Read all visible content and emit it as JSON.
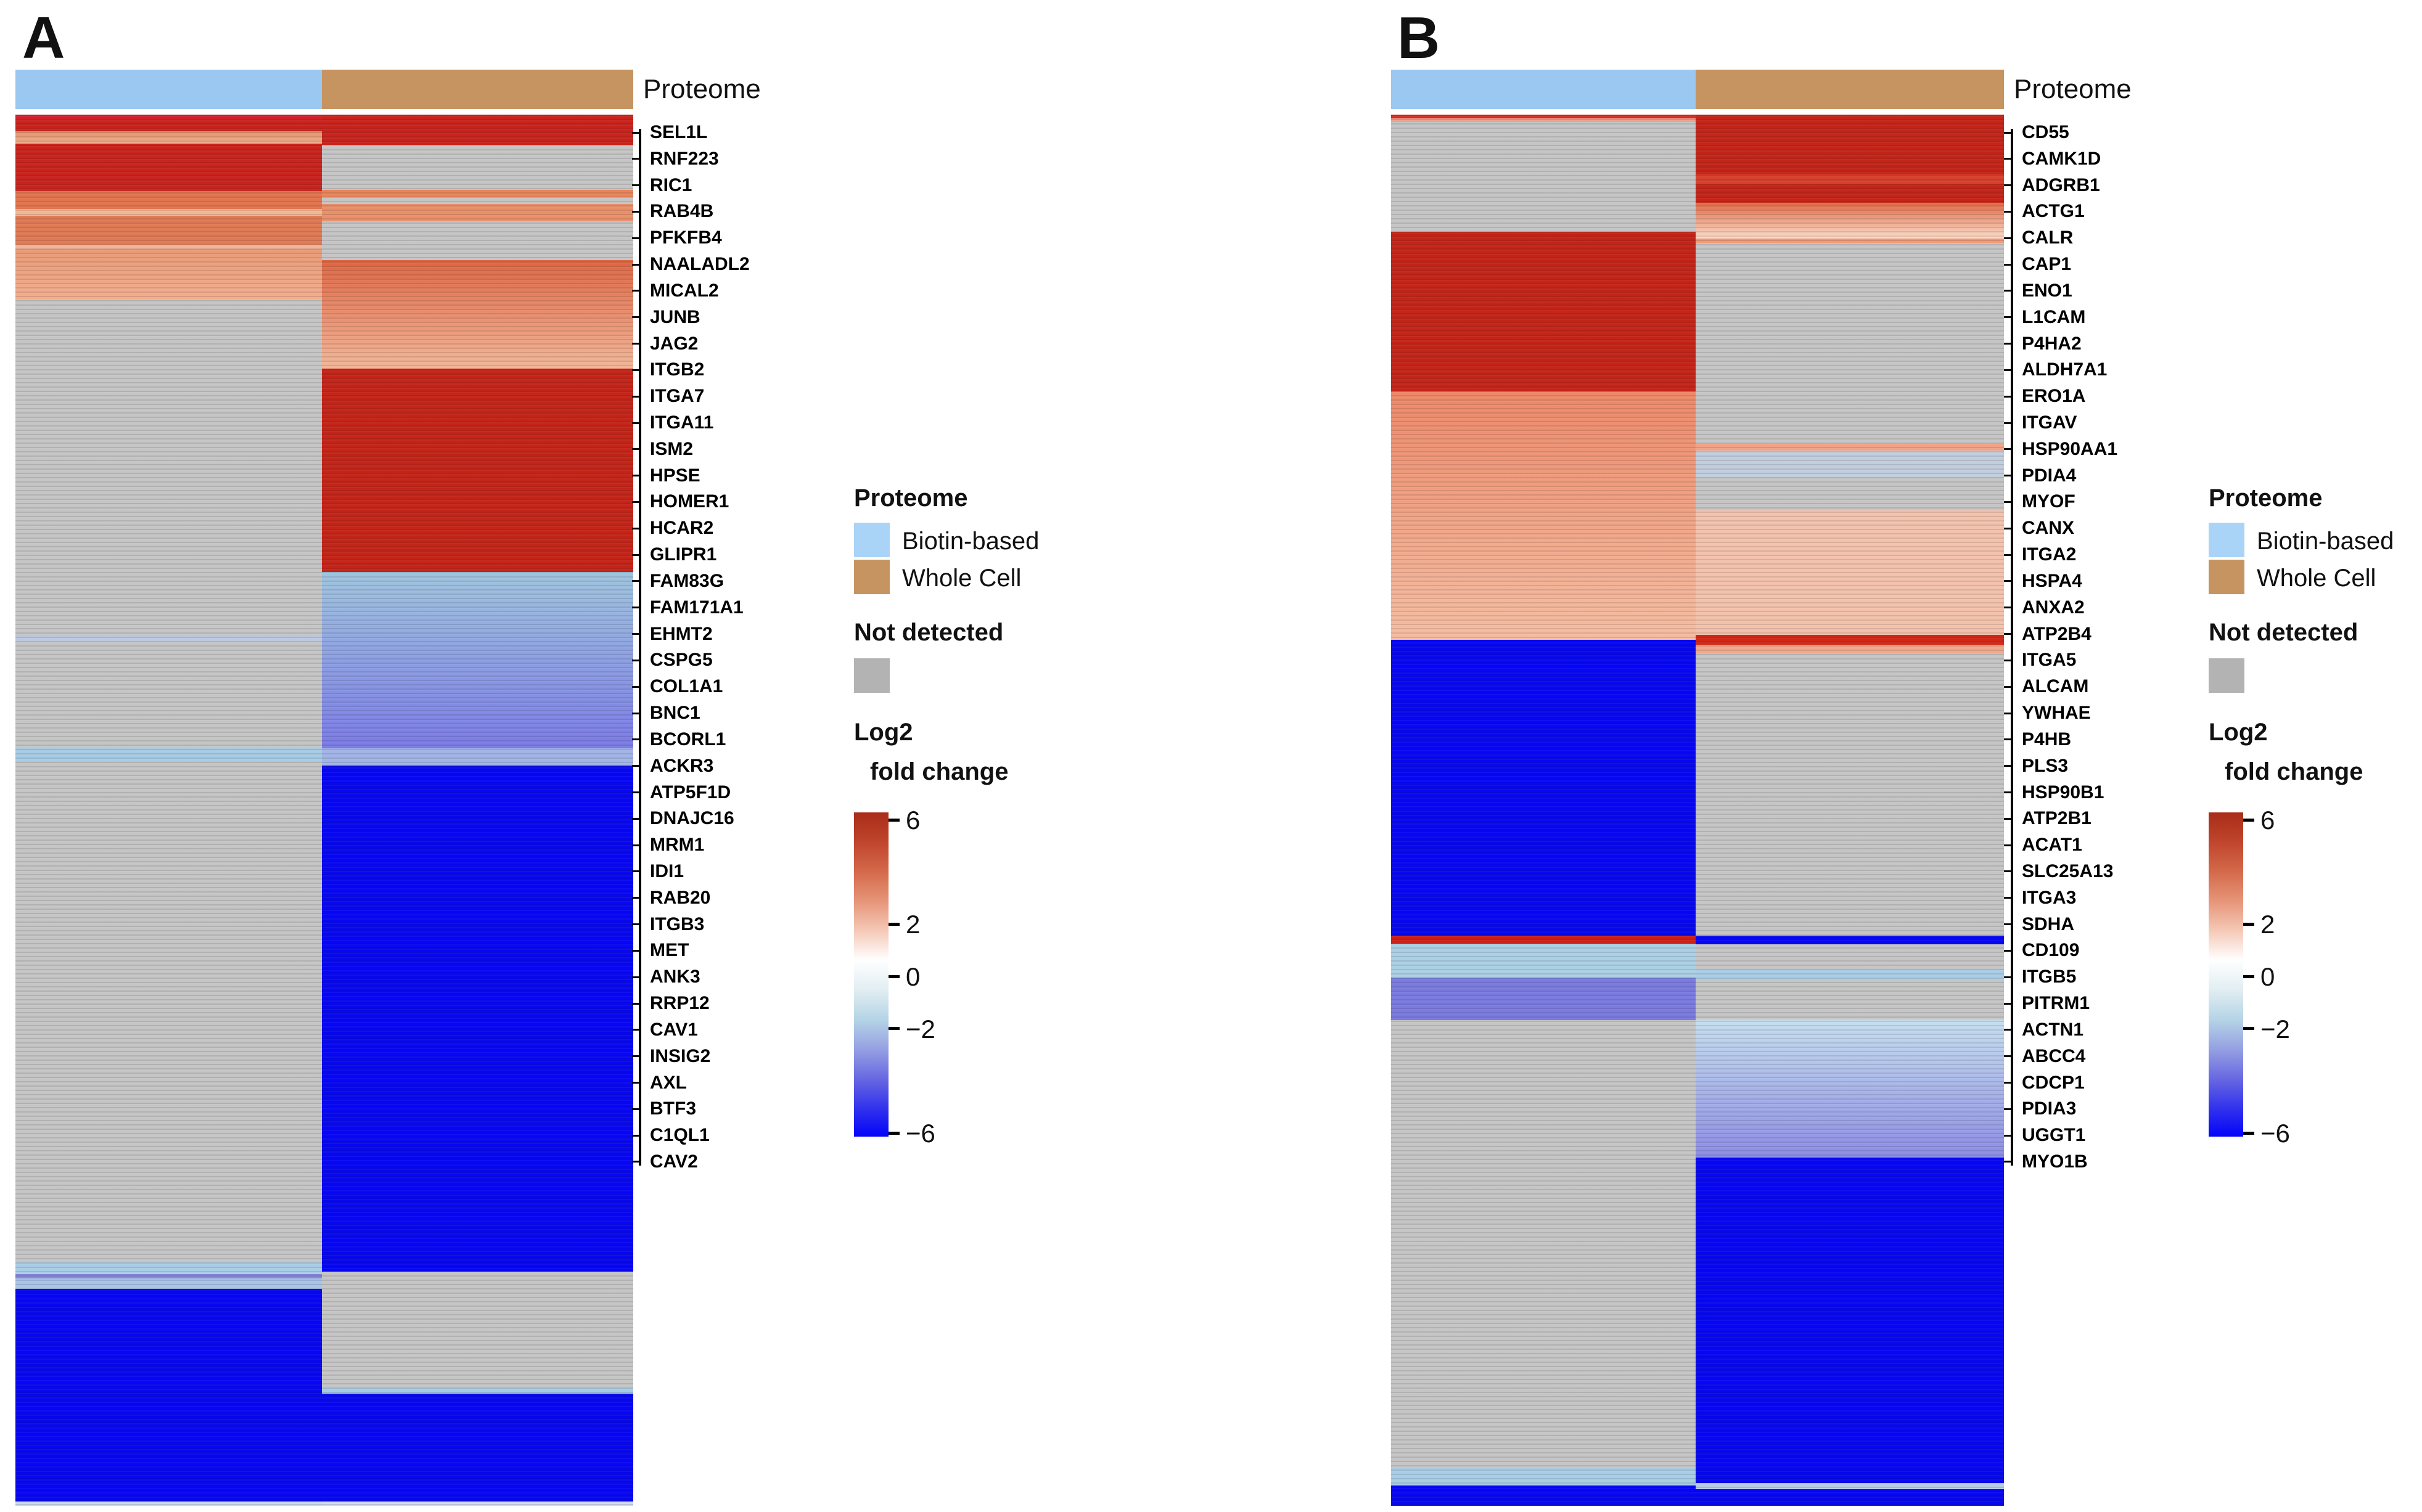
{
  "strings": {
    "proteome_caption": "Proteome"
  },
  "legend": {
    "proteome_title": "Proteome",
    "items": [
      {
        "label": "Biotin-based",
        "color": "#a9d4f7"
      },
      {
        "label": "Whole Cell",
        "color": "#c69460"
      }
    ],
    "not_detected_title": "Not detected",
    "not_detected_color": "#b3b3b3",
    "colorbar_title_line1": "Log2",
    "colorbar_title_line2": "fold change",
    "colorbar_ticks": [
      {
        "label": "6",
        "value": 6
      },
      {
        "label": "2",
        "value": 2
      },
      {
        "label": "0",
        "value": 0
      },
      {
        "label": "−2",
        "value": -2
      },
      {
        "label": "−6",
        "value": -6
      }
    ],
    "colorbar_min": -6,
    "colorbar_max": 6,
    "colorbar_stops": [
      "#a82c18",
      "#c0452c",
      "#d4694a",
      "#e69478",
      "#f5c8b6",
      "#ffffff",
      "#e2eef2",
      "#b6d5e6",
      "#96a2e2",
      "#6a6ae2",
      "#3434ec",
      "#0404fa"
    ]
  },
  "header_colors": {
    "biotin": "#9ac8f0",
    "whole_cell": "#c69460"
  },
  "not_detected_cell_color": "#c5c5c5",
  "chart_data": [
    {
      "type": "heatmap",
      "panel": "A",
      "columns": [
        "Biotin-based",
        "Whole Cell"
      ],
      "value_scale": {
        "label": "Log2 fold change",
        "min": -6,
        "max": 6,
        "not_detected": "gray"
      },
      "labeled_genes": [
        "SEL1L",
        "RNF223",
        "RIC1",
        "RAB4B",
        "PFKFB4",
        "NAALADL2",
        "MICAL2",
        "JUNB",
        "JAG2",
        "ITGB2",
        "ITGA7",
        "ITGA11",
        "ISM2",
        "HPSE",
        "HOMER1",
        "HCAR2",
        "GLIPR1",
        "FAM83G",
        "FAM171A1",
        "EHMT2",
        "CSPG5",
        "COL1A1",
        "BNC1",
        "BCORL1",
        "ACKR3",
        "ATP5F1D",
        "DNAJC16",
        "MRM1",
        "IDI1",
        "RAB20",
        "ITGB3",
        "MET",
        "ANK3",
        "RRP12",
        "CAV1",
        "INSIG2",
        "AXL",
        "BTF3",
        "C1QL1",
        "CAV2"
      ],
      "column_bands": {
        "biotin": [
          {
            "from": 0.0,
            "to": 0.004,
            "color": "#d02030",
            "log2fc": 6
          },
          {
            "from": 0.004,
            "to": 0.012,
            "color": "#c8231c",
            "log2fc": 6
          },
          {
            "from": 0.012,
            "to": 0.0208,
            "color": "#e4906a",
            "color2": "#f0b08e",
            "log2fc": 3
          },
          {
            "from": 0.0208,
            "to": 0.0549,
            "color": "#c8231c",
            "log2fc": 6
          },
          {
            "from": 0.0549,
            "to": 0.0678,
            "color": "#e2744e",
            "log2fc": 4
          },
          {
            "from": 0.0678,
            "to": 0.0727,
            "color": "#f2b695",
            "log2fc": 2
          },
          {
            "from": 0.0727,
            "to": 0.0935,
            "color": "#e07a54",
            "log2fc": 4
          },
          {
            "from": 0.0935,
            "to": 0.0966,
            "color": "#f0b496",
            "log2fc": 2
          },
          {
            "from": 0.0966,
            "to": 0.1325,
            "color": "#ea9a76",
            "color2": "#f0ae8e",
            "log2fc": 3
          },
          {
            "from": 0.1325,
            "to": 0.3749,
            "color": "ND",
            "log2fc": null
          },
          {
            "from": 0.3749,
            "to": 0.3788,
            "color": "#bcc8e0",
            "log2fc": -1
          },
          {
            "from": 0.3788,
            "to": 0.4555,
            "color": "ND",
            "log2fc": null
          },
          {
            "from": 0.4555,
            "to": 0.4652,
            "color": "#a6cbe4",
            "log2fc": -1.5
          },
          {
            "from": 0.4652,
            "to": 0.825,
            "color": "ND",
            "log2fc": null
          },
          {
            "from": 0.825,
            "to": 0.8334,
            "color": "#a9cde6",
            "log2fc": -1.5
          },
          {
            "from": 0.8334,
            "to": 0.8365,
            "color": "#8585d8",
            "log2fc": -3
          },
          {
            "from": 0.8365,
            "to": 0.8441,
            "color": "#a9c4e8",
            "log2fc": -1.5
          },
          {
            "from": 0.8441,
            "to": 0.9969,
            "color": "#0606f2",
            "log2fc": -6
          },
          {
            "from": 0.9969,
            "to": 1.0,
            "color": "#c8d8f0",
            "log2fc": -1
          }
        ],
        "whole_cell": [
          {
            "from": 0.0,
            "to": 0.0217,
            "color": "#c8231c",
            "log2fc": 6
          },
          {
            "from": 0.0217,
            "to": 0.0541,
            "color": "ND",
            "log2fc": null
          },
          {
            "from": 0.0541,
            "to": 0.0594,
            "color": "#e8845c",
            "log2fc": 3.5
          },
          {
            "from": 0.0594,
            "to": 0.0642,
            "color": "ND",
            "log2fc": null
          },
          {
            "from": 0.0642,
            "to": 0.0767,
            "color": "#e8906a",
            "log2fc": 3
          },
          {
            "from": 0.0767,
            "to": 0.1046,
            "color": "ND",
            "log2fc": null
          },
          {
            "from": 0.1046,
            "to": 0.1825,
            "color": "#dd6644",
            "color2": "#f2b698",
            "log2fc": 3
          },
          {
            "from": 0.1825,
            "to": 0.3288,
            "color": "#c42418",
            "log2fc": 6
          },
          {
            "from": 0.3288,
            "to": 0.4555,
            "color": "#9fc4dd",
            "color2": "#7a7ae6",
            "log2fc": -2.5
          },
          {
            "from": 0.4555,
            "to": 0.4679,
            "color": "#a2b4e6",
            "log2fc": -2
          },
          {
            "from": 0.4679,
            "to": 0.8317,
            "color": "#0606f2",
            "log2fc": -6
          },
          {
            "from": 0.8317,
            "to": 0.915,
            "color": "ND",
            "log2fc": null
          },
          {
            "from": 0.915,
            "to": 0.9194,
            "color": "#a6cbe4",
            "log2fc": -1.5
          },
          {
            "from": 0.9194,
            "to": 0.9969,
            "color": "#0606f2",
            "log2fc": -6
          },
          {
            "from": 0.9969,
            "to": 1.0,
            "color": "#d0d8f4",
            "log2fc": -1
          }
        ]
      }
    },
    {
      "type": "heatmap",
      "panel": "B",
      "columns": [
        "Biotin-based",
        "Whole Cell"
      ],
      "value_scale": {
        "label": "Log2 fold change",
        "min": -6,
        "max": 6,
        "not_detected": "gray"
      },
      "labeled_genes": [
        "CD55",
        "CAMK1D",
        "ADGRB1",
        "ACTG1",
        "CALR",
        "CAP1",
        "ENO1",
        "L1CAM",
        "P4HA2",
        "ALDH7A1",
        "ERO1A",
        "ITGAV",
        "HSP90AA1",
        "PDIA4",
        "MYOF",
        "CANX",
        "ITGA2",
        "HSPA4",
        "ANXA2",
        "ATP2B4",
        "ITGA5",
        "ALCAM",
        "YWHAE",
        "P4HB",
        "PLS3",
        "HSP90B1",
        "ATP2B1",
        "ACAT1",
        "SLC25A13",
        "ITGA3",
        "SDHA",
        "CD109",
        "ITGB5",
        "PITRM1",
        "ACTN1",
        "ABCC4",
        "CDCP1",
        "PDIA3",
        "UGGT1",
        "MYO1B"
      ],
      "column_bands": {
        "biotin": [
          {
            "from": 0.0,
            "to": 0.0027,
            "color": "#d42a1e",
            "log2fc": 6
          },
          {
            "from": 0.0027,
            "to": 0.0053,
            "color": "#eaa090",
            "log2fc": 2
          },
          {
            "from": 0.0053,
            "to": 0.0842,
            "color": "ND",
            "log2fc": null
          },
          {
            "from": 0.0842,
            "to": 0.199,
            "color": "#c42418",
            "log2fc": 6
          },
          {
            "from": 0.199,
            "to": 0.3775,
            "color": "#ec8868",
            "color2": "#f5bda2",
            "log2fc": 2.5
          },
          {
            "from": 0.3775,
            "to": 0.5902,
            "color": "#0606f2",
            "log2fc": -6
          },
          {
            "from": 0.5902,
            "to": 0.5959,
            "color": "#cc2018",
            "log2fc": 6
          },
          {
            "from": 0.5959,
            "to": 0.6203,
            "color": "#abd0e4",
            "log2fc": -1.5
          },
          {
            "from": 0.6203,
            "to": 0.6509,
            "color": "#7a7ae0",
            "log2fc": -3.5
          },
          {
            "from": 0.6509,
            "to": 0.9721,
            "color": "ND",
            "log2fc": null
          },
          {
            "from": 0.9721,
            "to": 0.9854,
            "color": "#a9cde6",
            "log2fc": -1.5
          },
          {
            "from": 0.9854,
            "to": 1.0,
            "color": "#0606f2",
            "log2fc": -6
          }
        ],
        "whole_cell": [
          {
            "from": 0.0,
            "to": 0.043,
            "color": "#c42418",
            "log2fc": 6
          },
          {
            "from": 0.043,
            "to": 0.0501,
            "color": "#d6402c",
            "log2fc": 5
          },
          {
            "from": 0.0501,
            "to": 0.0634,
            "color": "#c42418",
            "log2fc": 6
          },
          {
            "from": 0.0634,
            "to": 0.0891,
            "color": "#e06a46",
            "color2": "#fadcca",
            "log2fc": 2
          },
          {
            "from": 0.0891,
            "to": 0.0922,
            "color": "#f09878",
            "log2fc": 2.5
          },
          {
            "from": 0.0922,
            "to": 0.2366,
            "color": "ND",
            "log2fc": null
          },
          {
            "from": 0.2366,
            "to": 0.2415,
            "color": "#f2a284",
            "log2fc": 2.5
          },
          {
            "from": 0.2415,
            "to": 0.2605,
            "color": "#c2cedd",
            "log2fc": -0.5
          },
          {
            "from": 0.2605,
            "to": 0.2845,
            "color": "ND",
            "log2fc": null
          },
          {
            "from": 0.2845,
            "to": 0.374,
            "color": "#f3c2ac",
            "log2fc": 1
          },
          {
            "from": 0.374,
            "to": 0.3811,
            "color": "#d02818",
            "log2fc": 6
          },
          {
            "from": 0.3811,
            "to": 0.3873,
            "color": "#f0a88a",
            "log2fc": 2
          },
          {
            "from": 0.3873,
            "to": 0.5902,
            "color": "ND",
            "log2fc": null
          },
          {
            "from": 0.5902,
            "to": 0.5964,
            "color": "#0606f2",
            "log2fc": -6
          },
          {
            "from": 0.5964,
            "to": 0.615,
            "color": "ND",
            "log2fc": null
          },
          {
            "from": 0.615,
            "to": 0.6216,
            "color": "#a9cde6",
            "log2fc": -1.5
          },
          {
            "from": 0.6216,
            "to": 0.6504,
            "color": "ND",
            "log2fc": null
          },
          {
            "from": 0.6504,
            "to": 0.7497,
            "color": "#c6deee",
            "color2": "#8c8ce4",
            "log2fc": -2
          },
          {
            "from": 0.7497,
            "to": 0.9836,
            "color": "#0606f2",
            "log2fc": -6
          },
          {
            "from": 0.9836,
            "to": 0.988,
            "color": "#b8cce8",
            "log2fc": -1.5
          },
          {
            "from": 0.988,
            "to": 1.0,
            "color": "#0606f2",
            "log2fc": -6
          }
        ]
      }
    }
  ]
}
